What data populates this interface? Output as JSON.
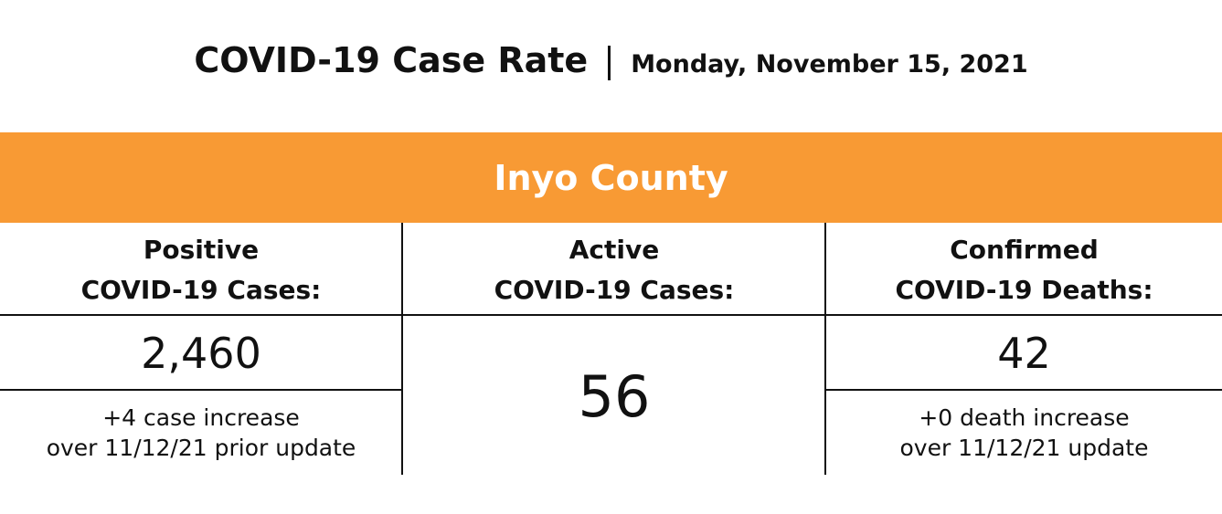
{
  "header": {
    "title": "COVID-19 Case Rate",
    "date": "Monday, November 15, 2021"
  },
  "banner": {
    "county": "Inyo County"
  },
  "table": {
    "columns": [
      {
        "heading": [
          "Positive",
          "COVID-19 Cases:"
        ],
        "value": "2,460",
        "note": [
          "+4 case increase",
          "over 11/12/21 prior update"
        ]
      },
      {
        "heading": [
          "Active",
          "COVID-19 Cases:"
        ],
        "value": "56"
      },
      {
        "heading": [
          "Confirmed",
          "COVID-19 Deaths:"
        ],
        "value": "42",
        "note": [
          "+0 death increase",
          "over 11/12/21 update"
        ]
      }
    ]
  }
}
